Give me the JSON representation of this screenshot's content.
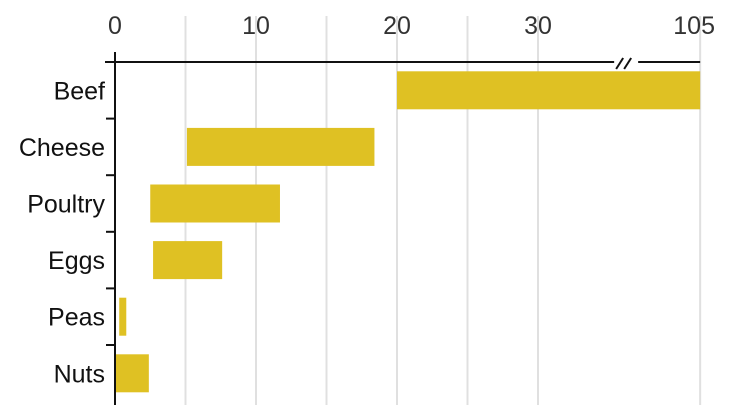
{
  "chart_data": {
    "type": "bar",
    "orientation": "horizontal",
    "style": "floating-range",
    "categories": [
      "Beef",
      "Cheese",
      "Poultry",
      "Eggs",
      "Peas",
      "Nuts"
    ],
    "series": [
      {
        "low": [
          20,
          5.1,
          2.5,
          2.7,
          0.3,
          0
        ],
        "high": [
          105,
          18.4,
          11.7,
          7.6,
          0.8,
          2.4
        ]
      }
    ],
    "x_ticks": [
      0,
      10,
      20,
      30,
      105
    ],
    "x_tick_labels": [
      "0",
      "10",
      "20",
      "30",
      "105"
    ],
    "gridlines": [
      5,
      10,
      15,
      20,
      25,
      30,
      105
    ],
    "xlim": [
      0,
      105
    ],
    "axis_break": "between 30 and 105",
    "x_axis_position": "top",
    "grid": true,
    "title": "",
    "xlabel": "",
    "ylabel": "",
    "colors": {
      "bar": "#dfc123",
      "grid": "#e0e0e0",
      "axis": "#111111"
    }
  }
}
